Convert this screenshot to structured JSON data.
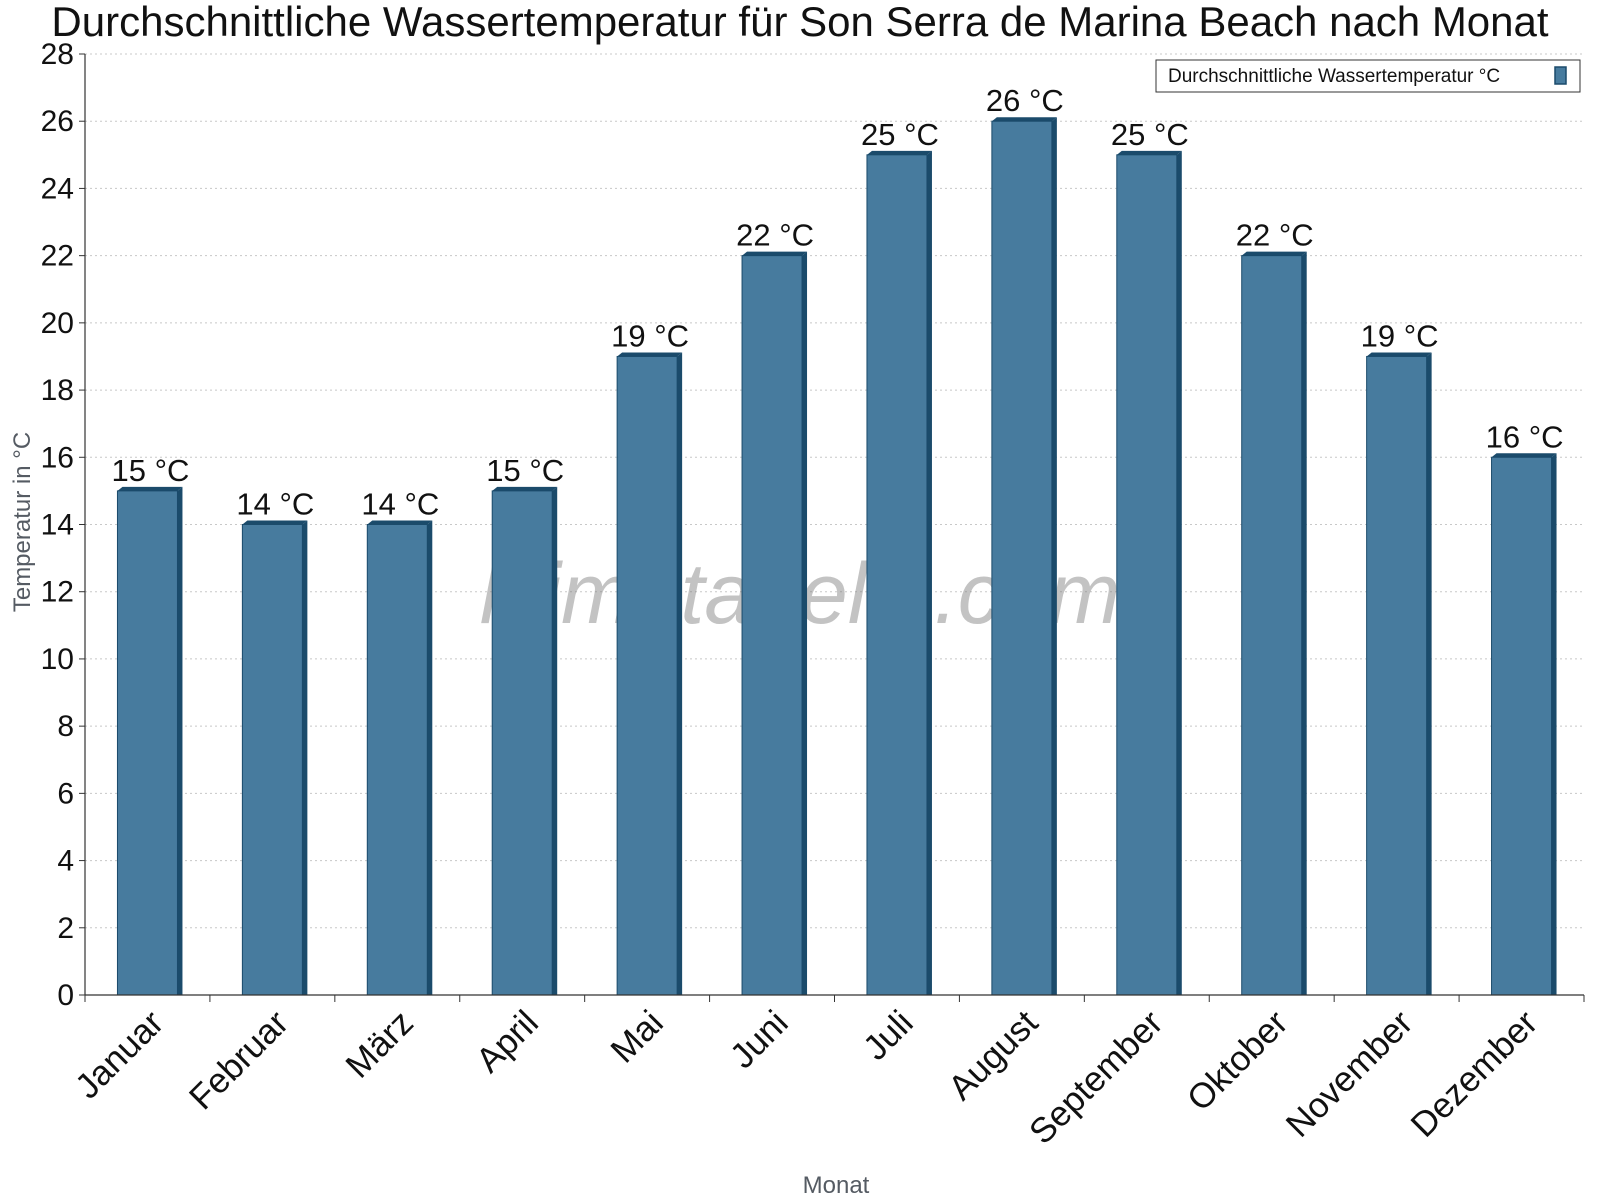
{
  "chart_data": {
    "type": "bar",
    "title": "Durchschnittliche Wassertemperatur für Son Serra de Marina Beach nach Monat",
    "xlabel": "Monat",
    "ylabel": "Temperatur in °C",
    "ylim": [
      0,
      28
    ],
    "yticks": [
      0,
      2,
      4,
      6,
      8,
      10,
      12,
      14,
      16,
      18,
      20,
      22,
      24,
      26,
      28
    ],
    "categories": [
      "Januar",
      "Februar",
      "März",
      "April",
      "Mai",
      "Juni",
      "Juli",
      "August",
      "September",
      "Oktober",
      "November",
      "Dezember"
    ],
    "series": [
      {
        "name": "Durchschnittliche Wassertemperatur °C",
        "values": [
          15,
          14,
          14,
          15,
          19,
          22,
          25,
          26,
          25,
          22,
          19,
          16
        ],
        "labels": [
          "15 °C",
          "14 °C",
          "14 °C",
          "15 °C",
          "19 °C",
          "22 °C",
          "25 °C",
          "26 °C",
          "25 °C",
          "22 °C",
          "19 °C",
          "16 °C"
        ]
      }
    ],
    "grid": true,
    "legend_position": "top-right",
    "colors": {
      "bar": "#477b9e",
      "bar_edge": "#1b4b6b",
      "grid": "#c8c8c8",
      "axis": "#333333"
    },
    "watermark": "klimatabelle.com"
  }
}
